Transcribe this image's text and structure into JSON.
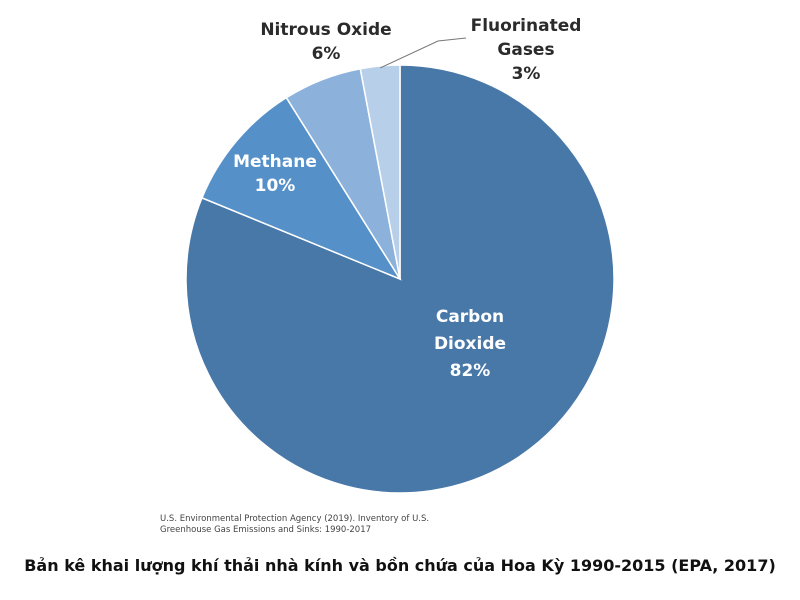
{
  "chart_data": {
    "type": "pie",
    "title": "",
    "slices": [
      {
        "label_lines": [
          "Carbon",
          "Dioxide",
          "82%"
        ],
        "name": "Carbon Dioxide",
        "value": 82,
        "color": "#4878a8"
      },
      {
        "label_lines": [
          "Methane",
          "10%"
        ],
        "name": "Methane",
        "value": 10,
        "color": "#5590c8"
      },
      {
        "label_lines": [
          "Nitrous Oxide",
          "6%"
        ],
        "name": "Nitrous Oxide",
        "value": 6,
        "color": "#8cb2dc"
      },
      {
        "label_lines": [
          "Fluorinated",
          "Gases",
          "3%"
        ],
        "name": "Fluorinated Gases",
        "value": 3,
        "color": "#b8cfea"
      }
    ]
  },
  "source_note": "U.S. Environmental Protection Agency (2019). Inventory of U.S. Greenhouse Gas Emissions and Sinks: 1990-2017",
  "caption": "Bản kê khai lượng khí thải nhà kính và bồn chứa của Hoa Kỳ 1990-2015 (EPA, 2017)"
}
